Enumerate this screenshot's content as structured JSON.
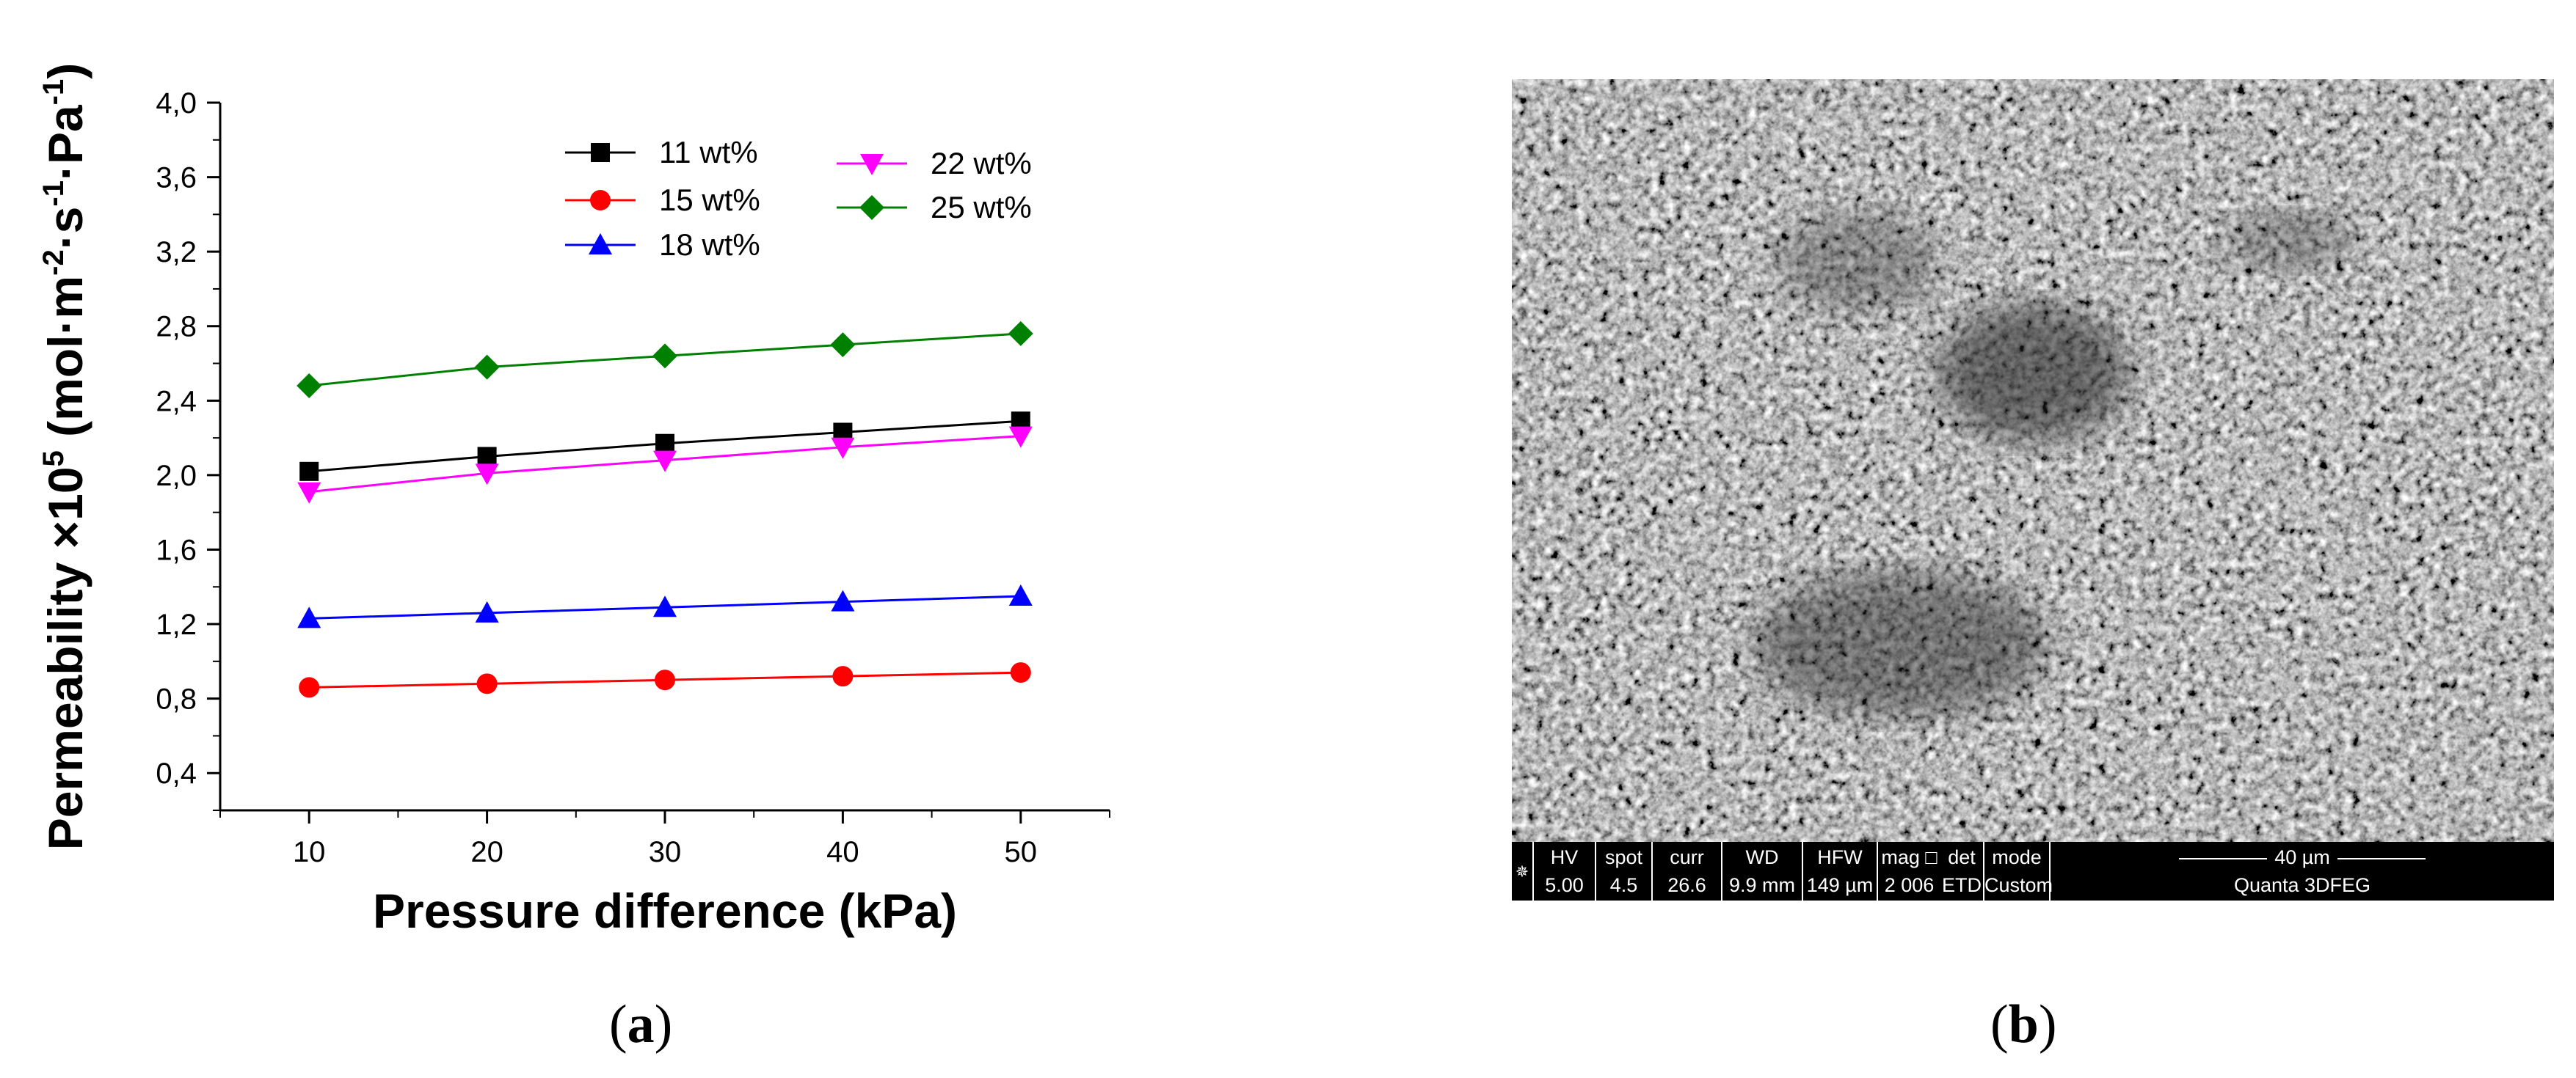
{
  "chart_data": {
    "type": "line",
    "xlabel": "Pressure difference (kPa)",
    "ylabel_parts": [
      "Permeability ×10",
      "5",
      " (mol·m",
      "-2",
      "·s",
      "-1",
      "·Pa",
      "-1",
      ")"
    ],
    "x": [
      10,
      20,
      30,
      40,
      50
    ],
    "xlim": [
      5,
      55
    ],
    "ylim": [
      0.2,
      4.0
    ],
    "x_ticks": [
      10,
      20,
      30,
      40,
      50
    ],
    "x_tick_labels": [
      "10",
      "20",
      "30",
      "40",
      "50"
    ],
    "y_ticks": [
      0.4,
      0.8,
      1.2,
      1.6,
      2.0,
      2.4,
      2.8,
      3.2,
      3.6,
      4.0
    ],
    "y_tick_labels": [
      "0,4",
      "0,8",
      "1,2",
      "1,6",
      "2,0",
      "2,4",
      "2,8",
      "3,2",
      "3,6",
      "4,0"
    ],
    "series": [
      {
        "name": "11 wt%",
        "color": "#000000",
        "marker": "square",
        "values": [
          2.02,
          2.1,
          2.17,
          2.23,
          2.29
        ]
      },
      {
        "name": "15 wt%",
        "color": "#ff0000",
        "marker": "circle",
        "values": [
          0.86,
          0.88,
          0.9,
          0.92,
          0.94
        ]
      },
      {
        "name": "18 wt%",
        "color": "#0000ff",
        "marker": "triangle-up",
        "values": [
          1.23,
          1.26,
          1.29,
          1.32,
          1.35
        ]
      },
      {
        "name": "22 wt%",
        "color": "#ff00ff",
        "marker": "triangle-down",
        "values": [
          1.91,
          2.01,
          2.08,
          2.15,
          2.21
        ]
      },
      {
        "name": "25 wt%",
        "color": "#008000",
        "marker": "diamond",
        "values": [
          2.48,
          2.58,
          2.64,
          2.7,
          2.76
        ]
      }
    ],
    "legend_position": "top-right"
  },
  "captions": {
    "a": "a",
    "b": "b"
  },
  "sem_databar": {
    "fields": [
      {
        "key": "HV",
        "value": "5.00 kV"
      },
      {
        "key": "spot",
        "value": "4.5"
      },
      {
        "key": "curr",
        "value": "26.6 pA"
      },
      {
        "key": "WD",
        "value": "9.9 mm"
      },
      {
        "key": "HFW",
        "value": "149 µm"
      },
      {
        "key": "mag □",
        "value": "2 006 x"
      },
      {
        "key": "det",
        "value": "ETD"
      },
      {
        "key": "mode",
        "value": "Custom"
      }
    ],
    "scale_label": "40 µm",
    "instrument": "Quanta 3DFEG"
  }
}
